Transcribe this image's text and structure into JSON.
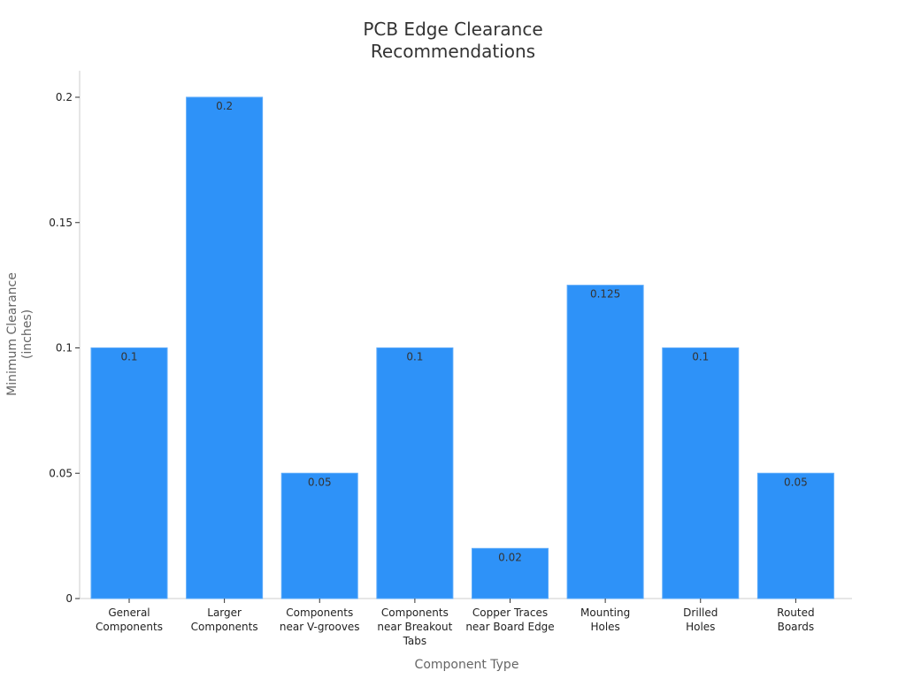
{
  "chart_data": {
    "type": "bar",
    "title": [
      "PCB Edge Clearance",
      "Recommendations"
    ],
    "xlabel": "Component Type",
    "ylabel": [
      "Minimum Clearance",
      "(inches)"
    ],
    "categories": [
      [
        "General",
        "Components"
      ],
      [
        "Larger",
        "Components"
      ],
      [
        "Components",
        "near V-grooves"
      ],
      [
        "Components",
        "near Breakout",
        "Tabs"
      ],
      [
        "Copper Traces",
        "near Board Edge"
      ],
      [
        "Mounting",
        "Holes"
      ],
      [
        "Drilled",
        "Holes"
      ],
      [
        "Routed",
        "Boards"
      ]
    ],
    "values": [
      0.1,
      0.2,
      0.05,
      0.1,
      0.02,
      0.125,
      0.1,
      0.05
    ],
    "value_labels": [
      "0.1",
      "0.2",
      "0.05",
      "0.1",
      "0.02",
      "0.125",
      "0.1",
      "0.05"
    ],
    "yticks": [
      0,
      0.05,
      0.1,
      0.15,
      0.2
    ],
    "ytick_labels": [
      "0",
      "0.05",
      "0.1",
      "0.15",
      "0.2"
    ],
    "ylim": [
      0,
      0.21
    ],
    "grid": false,
    "legend": "none",
    "colors": {
      "bar": "#2e92f8",
      "bar_edge": "#5aa9fa",
      "axis": "#cccccc"
    }
  }
}
